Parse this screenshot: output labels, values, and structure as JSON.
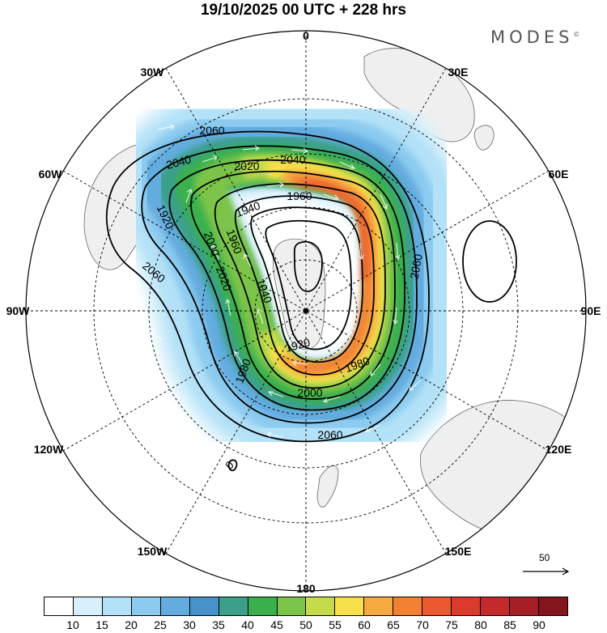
{
  "header": {
    "title": "19/10/2025  00 UTC  + 228 hrs",
    "brand": "MODES",
    "brand_mark": "©"
  },
  "map": {
    "projection": "south-polar-stereographic",
    "longitude_labels": [
      "0",
      "30E",
      "60E",
      "90E",
      "120E",
      "150E",
      "180",
      "150W",
      "120W",
      "90W",
      "60W",
      "30W"
    ],
    "contour_labels": [
      "2060",
      "2040",
      "2020",
      "2000",
      "1980",
      "1960",
      "1940",
      "1920",
      "2060",
      "2040",
      "2020",
      "2000",
      "1980",
      "1960",
      "1940",
      "1920",
      "2060",
      "2060",
      "0"
    ],
    "wind_reference": {
      "value": "50",
      "icon": "arrow-right-icon"
    }
  },
  "colorbar": {
    "ticks": [
      "10",
      "15",
      "20",
      "25",
      "30",
      "35",
      "40",
      "45",
      "50",
      "55",
      "60",
      "65",
      "70",
      "75",
      "80",
      "85",
      "90"
    ],
    "colors": [
      "#ffffff",
      "#d7f0fb",
      "#b3e1f7",
      "#8ccbef",
      "#63acdf",
      "#4692cb",
      "#3aa089",
      "#3ab04d",
      "#7bc448",
      "#c4dc4b",
      "#f8e04a",
      "#f7a941",
      "#f28134",
      "#ea5a2e",
      "#dc3a2c",
      "#c22a2c",
      "#a51f27",
      "#82161c"
    ]
  }
}
